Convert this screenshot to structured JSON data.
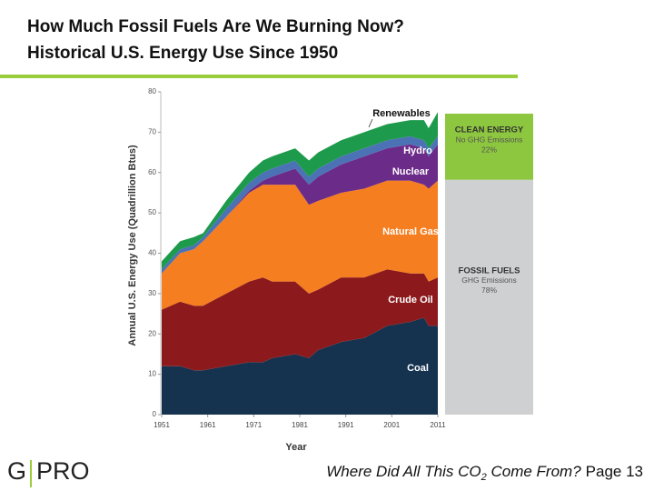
{
  "title": [
    "How Much Fossil Fuels Are We Burning Now?",
    "Historical U.S. Energy Use Since 1950"
  ],
  "logo": {
    "left": "G",
    "right": "PRO"
  },
  "footer": {
    "before": "Where Did All This CO",
    "sub": "2",
    "after": " Come From?",
    "page": "Page 13"
  },
  "chart_data": {
    "type": "stacked_area",
    "ylabel": "Annual U.S. Energy Use (Quadrillion Btus)",
    "xlabel": "Year",
    "x": [
      1951,
      1955,
      1958,
      1960,
      1965,
      1970,
      1973,
      1975,
      1980,
      1983,
      1985,
      1990,
      1995,
      2000,
      2005,
      2008,
      2009,
      2011
    ],
    "series": [
      {
        "name": "Coal",
        "color": "#15324f",
        "values": [
          12,
          12,
          11,
          11,
          12,
          13,
          13,
          14,
          15,
          14,
          16,
          18,
          19,
          22,
          23,
          24,
          22,
          22
        ]
      },
      {
        "name": "Crude Oil",
        "color": "#8c1a1c",
        "values": [
          14,
          16,
          16,
          16,
          18,
          20,
          21,
          19,
          18,
          16,
          15,
          16,
          15,
          14,
          12,
          11,
          11,
          12
        ]
      },
      {
        "name": "Natural Gas",
        "color": "#f47e20",
        "values": [
          9,
          12,
          14,
          16,
          19,
          22,
          23,
          24,
          24,
          22,
          22,
          21,
          22,
          22,
          23,
          22,
          23,
          24
        ]
      },
      {
        "name": "Nuclear",
        "color": "#6b2b88",
        "values": [
          0,
          0,
          0,
          0,
          0,
          0.5,
          1,
          2,
          4,
          5,
          6,
          7,
          8,
          8,
          9,
          9,
          8,
          9
        ]
      },
      {
        "name": "Hydro",
        "color": "#4b72b5",
        "values": [
          1,
          1,
          1,
          1,
          2,
          2,
          2,
          2,
          2,
          2,
          2,
          2,
          2,
          2,
          2,
          2,
          2,
          2
        ]
      },
      {
        "name": "Renewables",
        "color": "#1d9a4b",
        "values": [
          2,
          2,
          2,
          1,
          2,
          2.5,
          3,
          3,
          3,
          4,
          4,
          4,
          4,
          4,
          4,
          5,
          5,
          6
        ]
      }
    ],
    "xlim": [
      1951,
      2011
    ],
    "xticks": [
      1951,
      1961,
      1971,
      1981,
      1991,
      2001,
      2011
    ],
    "ylim": [
      0,
      80
    ],
    "yticks": [
      0,
      10,
      20,
      30,
      40,
      50,
      60,
      70,
      80
    ]
  },
  "share_bar": [
    {
      "name": "CLEAN ENERGY",
      "note": "No GHG Emissions",
      "value": 22,
      "value_label": "22%",
      "color": "#8dc63f"
    },
    {
      "name": "FOSSIL FUELS",
      "note": "GHG Emissions",
      "value": 78,
      "value_label": "78%",
      "color": "#cfd0d2"
    }
  ]
}
